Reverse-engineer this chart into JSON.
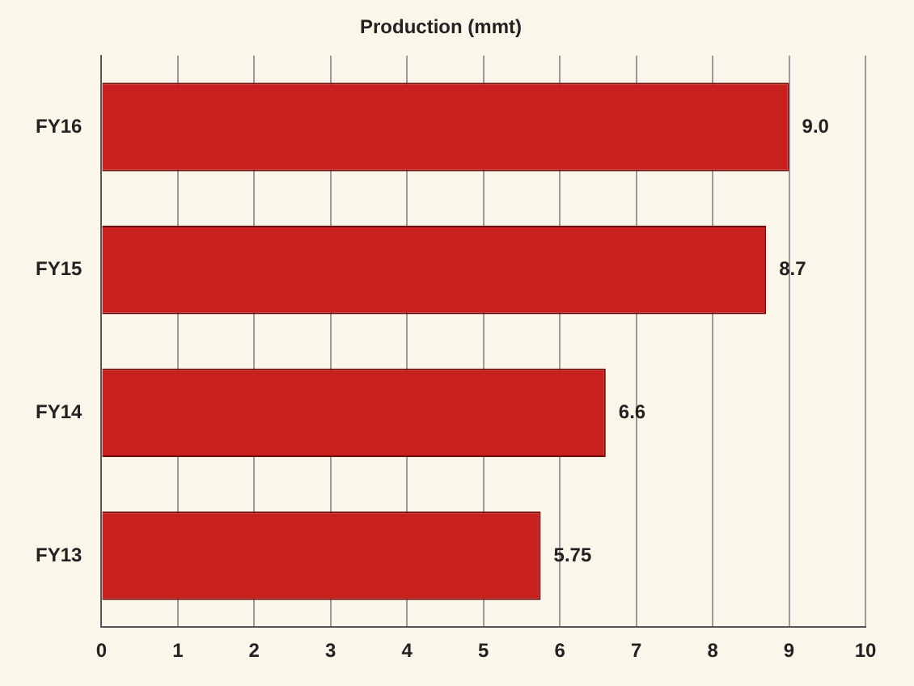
{
  "chart_data": {
    "type": "bar",
    "orientation": "horizontal",
    "title": "Production (mmt)",
    "categories": [
      "FY16",
      "FY15",
      "FY14",
      "FY13"
    ],
    "values": [
      9.0,
      8.7,
      6.6,
      5.75
    ],
    "value_labels": [
      "9.0",
      "8.7",
      "6.6",
      "5.75"
    ],
    "color": "#c8201e",
    "xlim": [
      0,
      10
    ],
    "xticks": [
      0,
      1,
      2,
      3,
      4,
      5,
      6,
      7,
      8,
      9,
      10
    ],
    "grid": "x",
    "legend": false
  }
}
